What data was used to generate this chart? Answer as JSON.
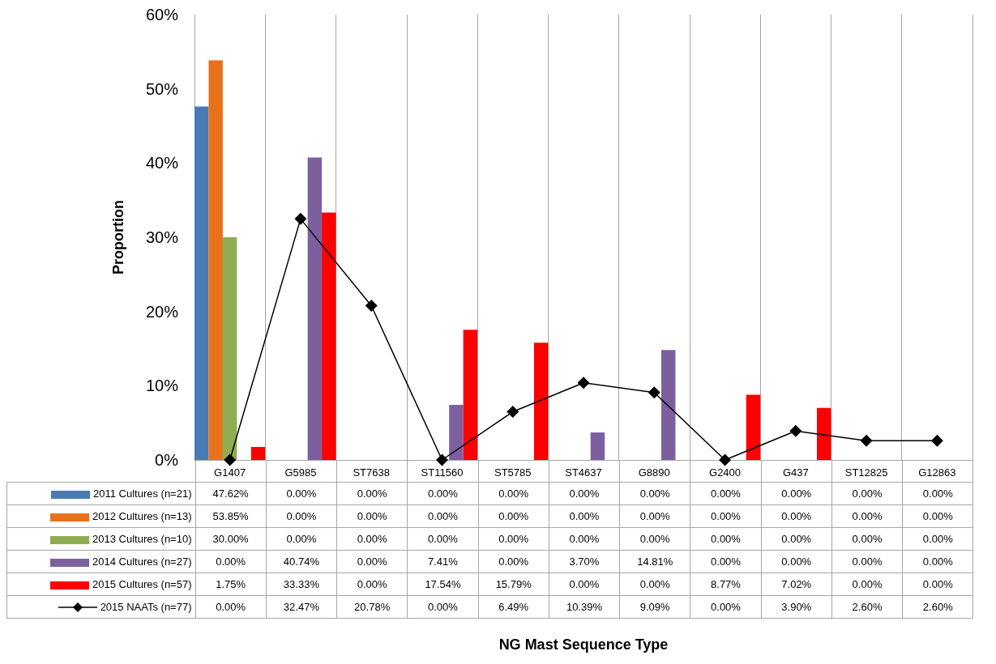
{
  "chart_data": {
    "type": "bar",
    "annotations": [
      "NG Mast Sequence Type"
    ],
    "ylabel": "Proportion",
    "categories": [
      "G1407",
      "G5985",
      "ST7638",
      "ST11560",
      "ST5785",
      "ST4637",
      "G8890",
      "G2400",
      "G437",
      "ST12825",
      "G12863"
    ],
    "ylim": [
      0,
      60
    ],
    "yticks": [
      {
        "value": 0,
        "label": "0%"
      },
      {
        "value": 10,
        "label": "10%"
      },
      {
        "value": 20,
        "label": "20%"
      },
      {
        "value": 30,
        "label": "30%"
      },
      {
        "value": 40,
        "label": "40%"
      },
      {
        "value": 50,
        "label": "50%"
      },
      {
        "value": 60,
        "label": "60%"
      }
    ],
    "grid": "x",
    "legend": "bottom left",
    "series": [
      {
        "name": "2011 Cultures (n=21)",
        "color": "#4a7ab5",
        "values": [
          47.62,
          0,
          0,
          0,
          0,
          0,
          0,
          0,
          0,
          0,
          0
        ],
        "value_labels": [
          "47.62%",
          "0.00%",
          "0.00%",
          "0.00%",
          "0.00%",
          "0.00%",
          "0.00%",
          "0.00%",
          "0.00%",
          "0.00%",
          "0.00%"
        ]
      },
      {
        "name": "2012 Cultures (n=13)",
        "color": "#e8711c",
        "values": [
          53.85,
          0,
          0,
          0,
          0,
          0,
          0,
          0,
          0,
          0,
          0
        ],
        "value_labels": [
          "53.85%",
          "0.00%",
          "0.00%",
          "0.00%",
          "0.00%",
          "0.00%",
          "0.00%",
          "0.00%",
          "0.00%",
          "0.00%",
          "0.00%"
        ]
      },
      {
        "name": "2013 Cultures (n=10)",
        "color": "#8fac52",
        "values": [
          30.0,
          0,
          0,
          0,
          0,
          0,
          0,
          0,
          0,
          0,
          0
        ],
        "value_labels": [
          "30.00%",
          "0.00%",
          "0.00%",
          "0.00%",
          "0.00%",
          "0.00%",
          "0.00%",
          "0.00%",
          "0.00%",
          "0.00%",
          "0.00%"
        ]
      },
      {
        "name": "2014 Cultures (n=27)",
        "color": "#7d5fa0",
        "values": [
          0,
          40.74,
          0,
          7.41,
          0,
          3.7,
          14.81,
          0,
          0,
          0,
          0
        ],
        "value_labels": [
          "0.00%",
          "40.74%",
          "0.00%",
          "7.41%",
          "0.00%",
          "3.70%",
          "14.81%",
          "0.00%",
          "0.00%",
          "0.00%",
          "0.00%"
        ]
      },
      {
        "name": "2015 Cultures (n=57)",
        "color": "#ff0000",
        "values": [
          1.75,
          33.33,
          0,
          17.54,
          15.79,
          0,
          0,
          8.77,
          7.02,
          0,
          0
        ],
        "value_labels": [
          "1.75%",
          "33.33%",
          "0.00%",
          "17.54%",
          "15.79%",
          "0.00%",
          "0.00%",
          "8.77%",
          "7.02%",
          "0.00%",
          "0.00%"
        ]
      },
      {
        "name": "2015  NAATs (n=77)",
        "type": "line",
        "color": "#000000",
        "marker": "diamond",
        "line_style": "solid",
        "values": [
          0,
          32.47,
          20.78,
          0,
          6.49,
          10.39,
          9.09,
          0,
          3.9,
          2.6,
          2.6
        ],
        "value_labels": [
          "0.00%",
          "32.47%",
          "20.78%",
          "0.00%",
          "6.49%",
          "10.39%",
          "9.09%",
          "0.00%",
          "3.90%",
          "2.60%",
          "2.60%"
        ]
      }
    ]
  }
}
